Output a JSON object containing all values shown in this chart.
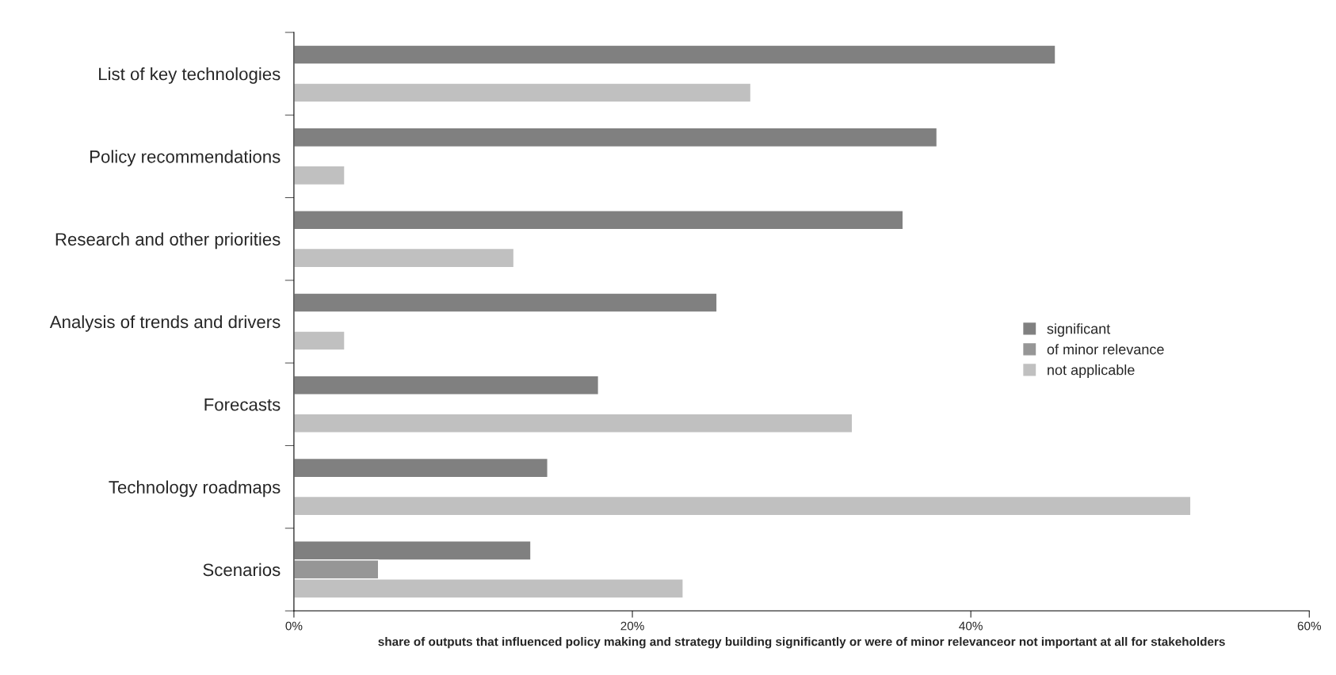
{
  "chart_data": {
    "type": "bar",
    "orientation": "horizontal",
    "xlabel": "share of outputs that influenced policy making and strategy building significantly or were of minor relevanceor not important at all for stakeholders",
    "categories": [
      "List of key technologies",
      "Policy recommendations",
      "Research and other priorities",
      "Analysis of trends and drivers",
      "Forecasts",
      "Technology roadmaps",
      "Scenarios"
    ],
    "series": [
      {
        "name": "significant",
        "color": "#808080",
        "values": [
          45,
          38,
          36,
          25,
          18,
          15,
          14
        ]
      },
      {
        "name": "of minor relevance",
        "color": "#969696",
        "values": [
          null,
          null,
          null,
          null,
          null,
          null,
          5
        ]
      },
      {
        "name": "not applicable",
        "color": "#c0c0c0",
        "values": [
          27,
          3,
          13,
          3,
          33,
          53,
          23
        ]
      }
    ],
    "xlim": [
      0,
      60
    ],
    "xticks": [
      {
        "value": 0,
        "label": "0%"
      },
      {
        "value": 20,
        "label": "20%"
      },
      {
        "value": 40,
        "label": "40%"
      },
      {
        "value": 60,
        "label": "60%"
      }
    ],
    "grid": false,
    "legend": "right"
  }
}
